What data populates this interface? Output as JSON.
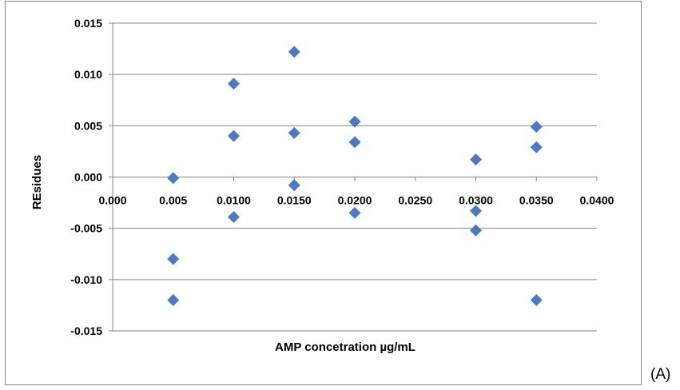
{
  "chart_data": {
    "type": "scatter",
    "title": "",
    "xlabel": "AMP concetration µg/mL",
    "ylabel": "REsidues",
    "xlim": [
      0,
      0.04
    ],
    "ylim": [
      -0.015,
      0.015
    ],
    "grid": {
      "horizontal": true,
      "vertical": false
    },
    "x_tick_labels": [
      "0.000",
      "0.005",
      "0.0100",
      "0.0150",
      "0.0200",
      "0.0250",
      "0.0300",
      "0.0350",
      "0.0400"
    ],
    "y_tick_labels": [
      "0.015",
      "0.010",
      "0.005",
      "0.000",
      "-0.005",
      "-0.010",
      "-0.015"
    ],
    "marker_color": "#4a7ac4",
    "marker": "diamond",
    "points": [
      {
        "x": 0.005,
        "y": -0.0001
      },
      {
        "x": 0.005,
        "y": -0.008
      },
      {
        "x": 0.005,
        "y": -0.012
      },
      {
        "x": 0.01,
        "y": 0.0091
      },
      {
        "x": 0.01,
        "y": 0.004
      },
      {
        "x": 0.01,
        "y": -0.0039
      },
      {
        "x": 0.015,
        "y": 0.0122
      },
      {
        "x": 0.015,
        "y": 0.0043
      },
      {
        "x": 0.015,
        "y": -0.0008
      },
      {
        "x": 0.02,
        "y": 0.0054
      },
      {
        "x": 0.02,
        "y": 0.0034
      },
      {
        "x": 0.02,
        "y": -0.0035
      },
      {
        "x": 0.03,
        "y": 0.0017
      },
      {
        "x": 0.03,
        "y": -0.0033
      },
      {
        "x": 0.03,
        "y": -0.0052
      },
      {
        "x": 0.035,
        "y": 0.0049
      },
      {
        "x": 0.035,
        "y": 0.0029
      },
      {
        "x": 0.035,
        "y": -0.012
      }
    ]
  },
  "panel_label": "(A)"
}
